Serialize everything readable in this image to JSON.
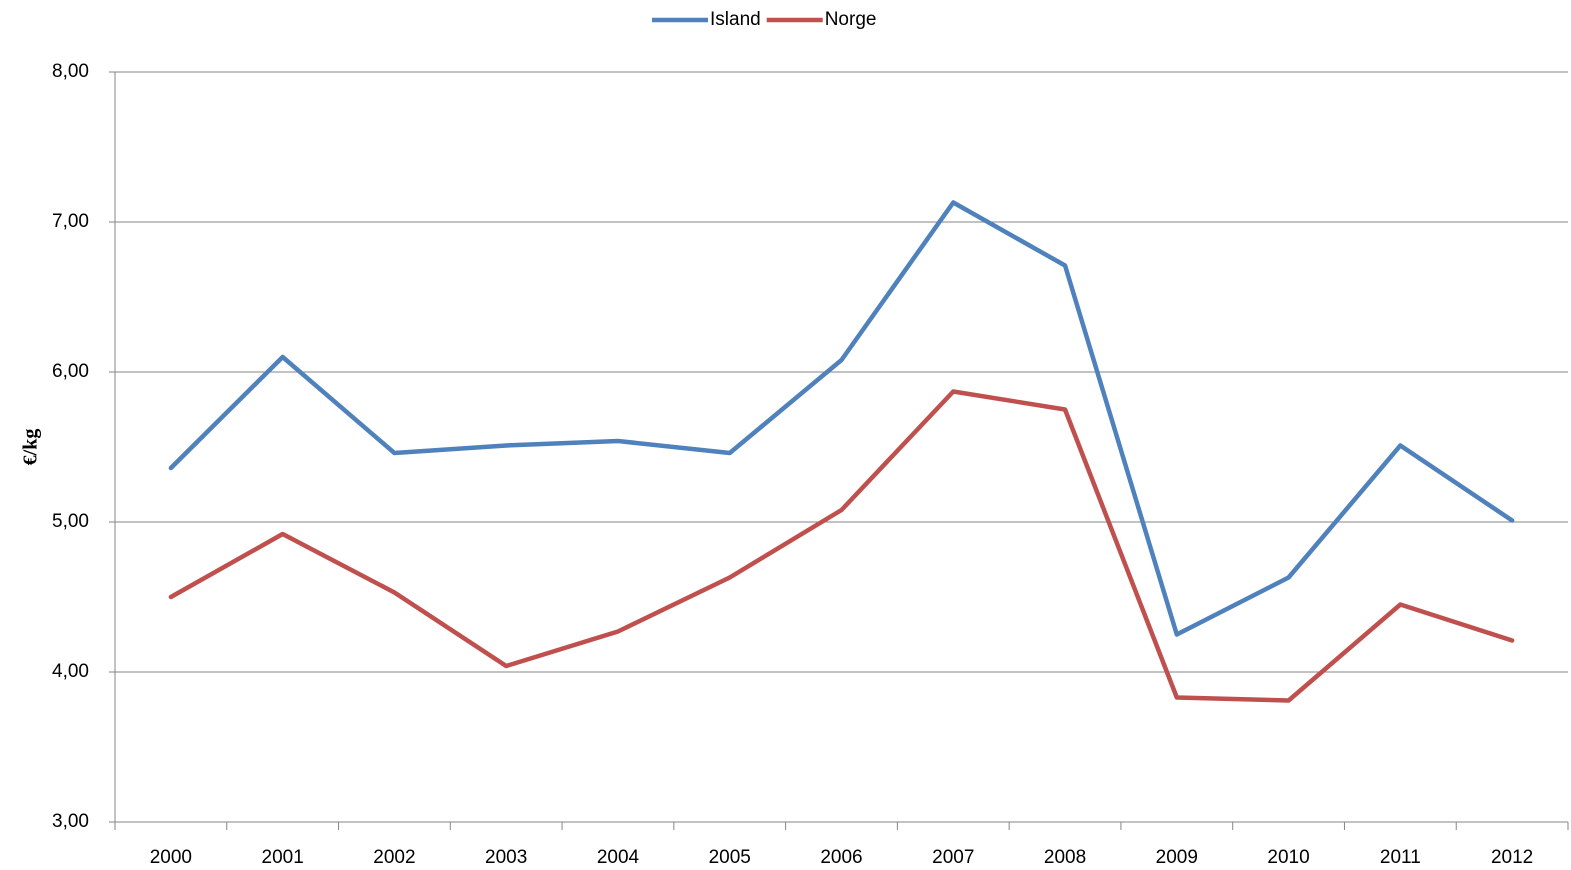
{
  "chart_data": {
    "type": "line",
    "y_label": "€/kg",
    "categories": [
      "2000",
      "2001",
      "2002",
      "2003",
      "2004",
      "2005",
      "2006",
      "2007",
      "2008",
      "2009",
      "2010",
      "2011",
      "2012"
    ],
    "series": [
      {
        "name": "Island",
        "color": "#4f81bd",
        "values": [
          5.36,
          6.1,
          5.46,
          5.51,
          5.54,
          5.46,
          6.08,
          7.13,
          6.71,
          4.25,
          4.63,
          5.51,
          5.01
        ]
      },
      {
        "name": "Norge",
        "color": "#c0504d",
        "values": [
          4.5,
          4.92,
          4.53,
          4.04,
          4.27,
          4.63,
          5.08,
          5.87,
          5.75,
          3.83,
          3.81,
          4.45,
          4.21
        ]
      }
    ],
    "ylim": [
      3,
      8
    ],
    "yticks": [
      {
        "value": 3,
        "label": "3,00"
      },
      {
        "value": 4,
        "label": "4,00"
      },
      {
        "value": 5,
        "label": "5,00"
      },
      {
        "value": 6,
        "label": "6,00"
      },
      {
        "value": 7,
        "label": "7,00"
      },
      {
        "value": 8,
        "label": "8,00"
      }
    ],
    "grid": true,
    "legend": "top"
  }
}
